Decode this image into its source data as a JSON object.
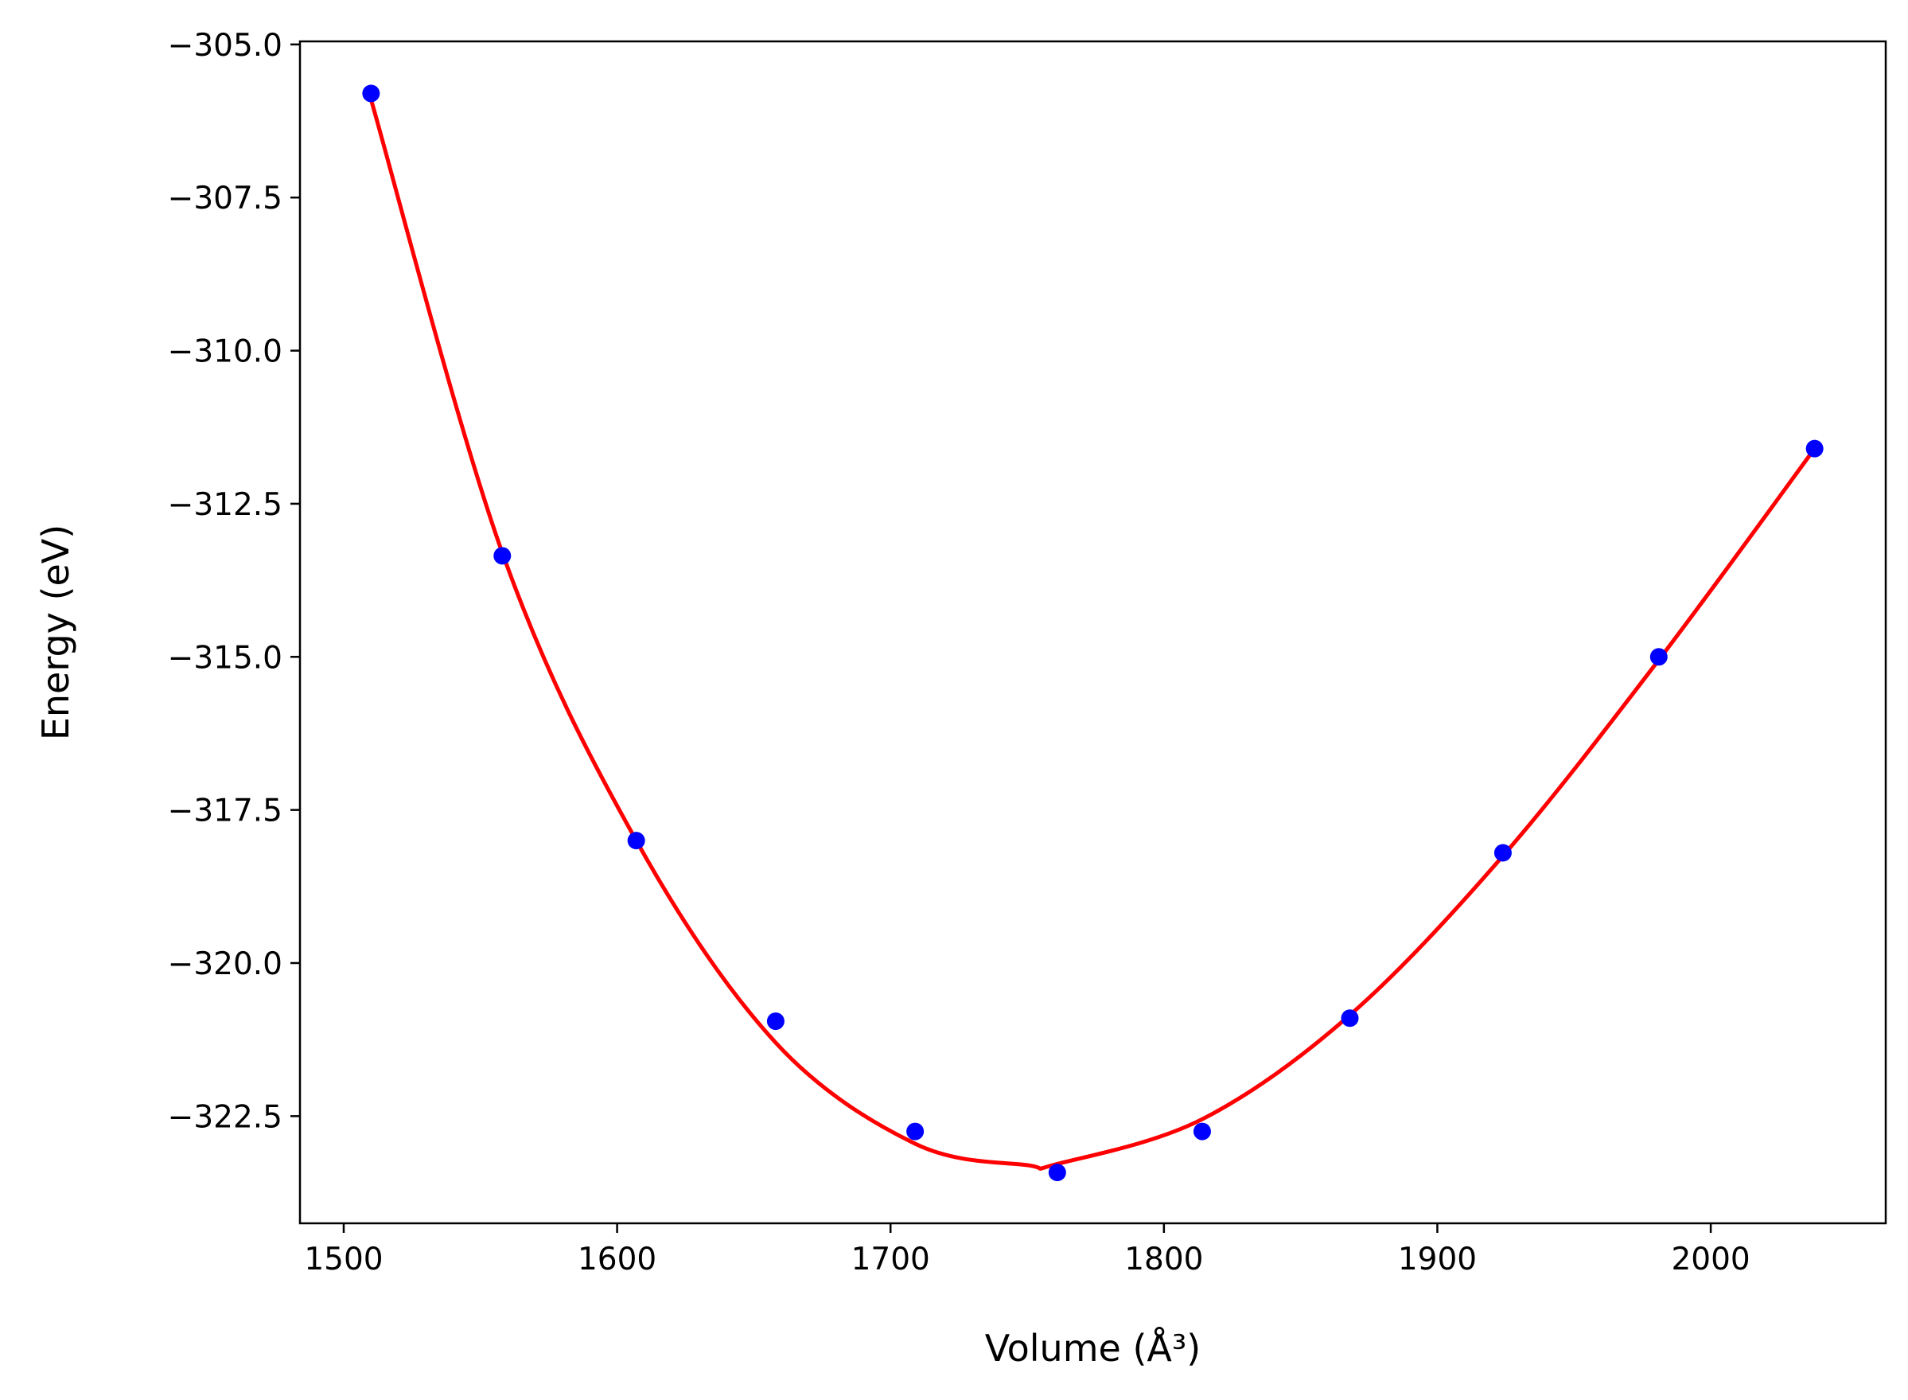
{
  "chart_data": {
    "type": "scatter",
    "title": "",
    "xlabel": "Volume (Å³)",
    "ylabel": "Energy (eV)",
    "xlim": [
      1484,
      2064
    ],
    "ylim": [
      -324.25,
      -304.95
    ],
    "xticks": [
      1500,
      1600,
      1700,
      1800,
      1900,
      2000
    ],
    "xtick_labels": [
      "1500",
      "1600",
      "1700",
      "1800",
      "1900",
      "2000"
    ],
    "yticks": [
      -305.0,
      -307.5,
      -310.0,
      -312.5,
      -315.0,
      -317.5,
      -320.0,
      -322.5
    ],
    "ytick_labels": [
      "−305.0",
      "−307.5",
      "−310.0",
      "−312.5",
      "−315.0",
      "−317.5",
      "−320.0",
      "−322.5"
    ],
    "grid": false,
    "series": [
      {
        "kind": "scatter",
        "color": "#0000ff",
        "x": [
          1510,
          1558,
          1607,
          1658,
          1709,
          1761,
          1814,
          1868,
          1924,
          1981,
          2038
        ],
        "y": [
          -305.8,
          -313.35,
          -318.0,
          -320.95,
          -322.75,
          -323.42,
          -322.75,
          -320.9,
          -318.2,
          -315.0,
          -311.6
        ]
      },
      {
        "kind": "line",
        "color": "#ff0000",
        "x": [
          1510,
          1558,
          1607,
          1658,
          1709,
          1750,
          1761,
          1814,
          1868,
          1924,
          1981,
          2038
        ],
        "y": [
          -305.9,
          -313.3,
          -318.0,
          -321.3,
          -322.95,
          -323.3,
          -323.28,
          -322.55,
          -320.85,
          -318.25,
          -315.05,
          -311.6
        ]
      }
    ]
  }
}
